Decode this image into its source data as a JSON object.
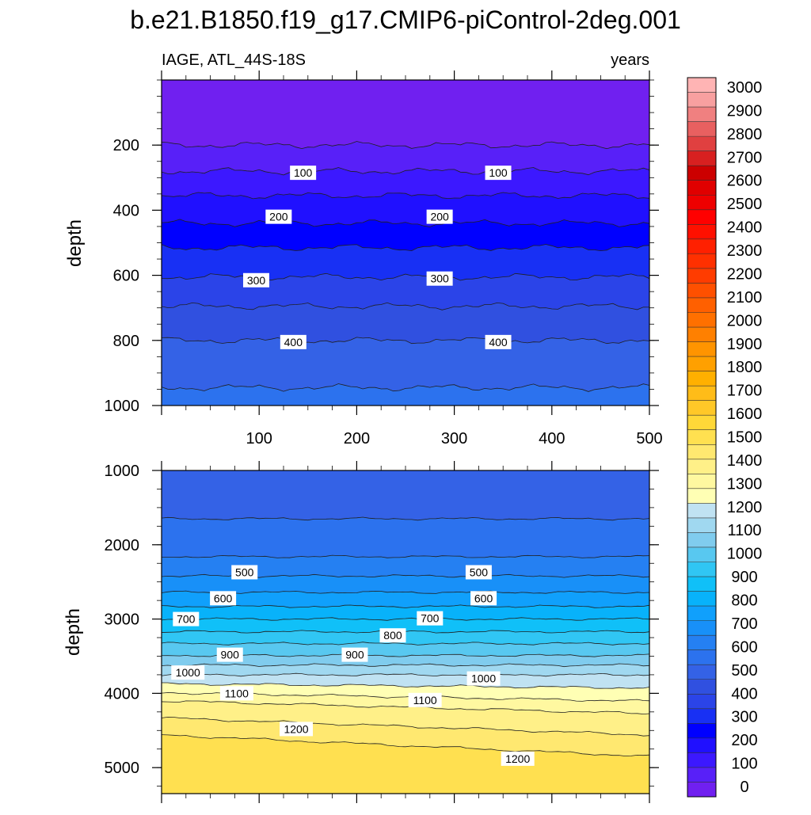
{
  "title": "b.e21.B1850.f19_g17.CMIP6-piControl-2deg.001",
  "subtitle_left": "IAGE, ATL_44S-18S",
  "subtitle_right": "years",
  "chart_data": [
    {
      "type": "contour",
      "panel": "upper",
      "ylabel": "depth",
      "xlim": [
        0,
        500
      ],
      "ylim": [
        1000,
        0
      ],
      "xticks": [
        100,
        200,
        300,
        400,
        500
      ],
      "yticks": [
        200,
        400,
        600,
        800,
        1000
      ],
      "contour_interval": 50,
      "levels": [
        {
          "value": 50,
          "depth": 200
        },
        {
          "value": 100,
          "depth": 280
        },
        {
          "value": 150,
          "depth": 355
        },
        {
          "value": 200,
          "depth": 440
        },
        {
          "value": 250,
          "depth": 515
        },
        {
          "value": 300,
          "depth": 605
        },
        {
          "value": 350,
          "depth": 695
        },
        {
          "value": 400,
          "depth": 800
        },
        {
          "value": 450,
          "depth": 945
        }
      ],
      "contour_labels": [
        {
          "text": "100",
          "x": 145,
          "y": 285
        },
        {
          "text": "100",
          "x": 345,
          "y": 285
        },
        {
          "text": "200",
          "x": 120,
          "y": 420
        },
        {
          "text": "200",
          "x": 285,
          "y": 420
        },
        {
          "text": "300",
          "x": 97,
          "y": 615
        },
        {
          "text": "300",
          "x": 285,
          "y": 610
        },
        {
          "text": "400",
          "x": 135,
          "y": 805
        },
        {
          "text": "400",
          "x": 345,
          "y": 805
        }
      ]
    },
    {
      "type": "contour",
      "panel": "lower",
      "ylabel": "depth",
      "xlim": [
        0,
        500
      ],
      "ylim": [
        5350,
        1000
      ],
      "yticks": [
        1000,
        2000,
        3000,
        4000,
        5000
      ],
      "contour_interval": 50,
      "levels": [
        {
          "value": 450,
          "depth": 1650
        },
        {
          "value": 500,
          "depth": 2160
        },
        {
          "value": 550,
          "depth": 2420
        },
        {
          "value": 600,
          "depth": 2640
        },
        {
          "value": 650,
          "depth": 2830
        },
        {
          "value": 700,
          "depth": 3000
        },
        {
          "value": 750,
          "depth": 3170
        },
        {
          "value": 800,
          "depth": 3330
        },
        {
          "value": 850,
          "depth": 3490
        },
        {
          "value": 900,
          "depth": 3620
        },
        {
          "value": 950,
          "depth": 3750
        },
        {
          "value": 1000,
          "depth": 3870
        },
        {
          "value": 1050,
          "depth": 3990
        },
        {
          "value": 1100,
          "depth": 4100
        },
        {
          "value": 1150,
          "depth": 4330
        },
        {
          "value": 1200,
          "depth": 4560
        }
      ],
      "contour_labels": [
        {
          "text": "500",
          "x": 85,
          "y": 2370
        },
        {
          "text": "500",
          "x": 325,
          "y": 2370
        },
        {
          "text": "600",
          "x": 63,
          "y": 2720
        },
        {
          "text": "600",
          "x": 330,
          "y": 2720
        },
        {
          "text": "700",
          "x": 25,
          "y": 3000
        },
        {
          "text": "700",
          "x": 275,
          "y": 2990
        },
        {
          "text": "800",
          "x": 237,
          "y": 3220
        },
        {
          "text": "900",
          "x": 70,
          "y": 3480
        },
        {
          "text": "900",
          "x": 198,
          "y": 3480
        },
        {
          "text": "1000",
          "x": 27,
          "y": 3720
        },
        {
          "text": "1000",
          "x": 330,
          "y": 3800
        },
        {
          "text": "1100",
          "x": 77,
          "y": 4000
        },
        {
          "text": "1100",
          "x": 270,
          "y": 4090
        },
        {
          "text": "1200",
          "x": 138,
          "y": 4480
        },
        {
          "text": "1200",
          "x": 365,
          "y": 4880
        }
      ]
    }
  ],
  "colorbar": {
    "labels": [
      "0",
      "100",
      "200",
      "300",
      "400",
      "500",
      "600",
      "700",
      "800",
      "900",
      "1000",
      "1100",
      "1200",
      "1300",
      "1400",
      "1500",
      "1600",
      "1700",
      "1800",
      "1900",
      "2000",
      "2100",
      "2200",
      "2300",
      "2400",
      "2500",
      "2600",
      "2700",
      "2800",
      "2900",
      "3000"
    ],
    "colors": [
      "#7020f0",
      "#5820f8",
      "#3c18ff",
      "#2010ff",
      "#0000ff",
      "#1830f4",
      "#2b44e8",
      "#3050e0",
      "#3462e6",
      "#2c72ee",
      "#2580f2",
      "#1890f8",
      "#10a0fc",
      "#08b2fa",
      "#10c0f8",
      "#30c6f4",
      "#58c8f0",
      "#80ccee",
      "#a0d8f0",
      "#c0e2f2",
      "#ffffb4",
      "#fff8a0",
      "#fff088",
      "#ffe870",
      "#ffe050",
      "#ffd838",
      "#ffc828",
      "#ffbc18",
      "#ffb000",
      "#ffa000",
      "#ff9400",
      "#ff8000",
      "#ff7000",
      "#ff6000",
      "#ff5000",
      "#ff3c00",
      "#ff3000",
      "#ff2000",
      "#ff1000",
      "#ff0000",
      "#ee0000",
      "#e00000",
      "#cc0000",
      "#d82020",
      "#e04040",
      "#e86060",
      "#f08080",
      "#f8a0a0",
      "#ffb4b4"
    ]
  }
}
